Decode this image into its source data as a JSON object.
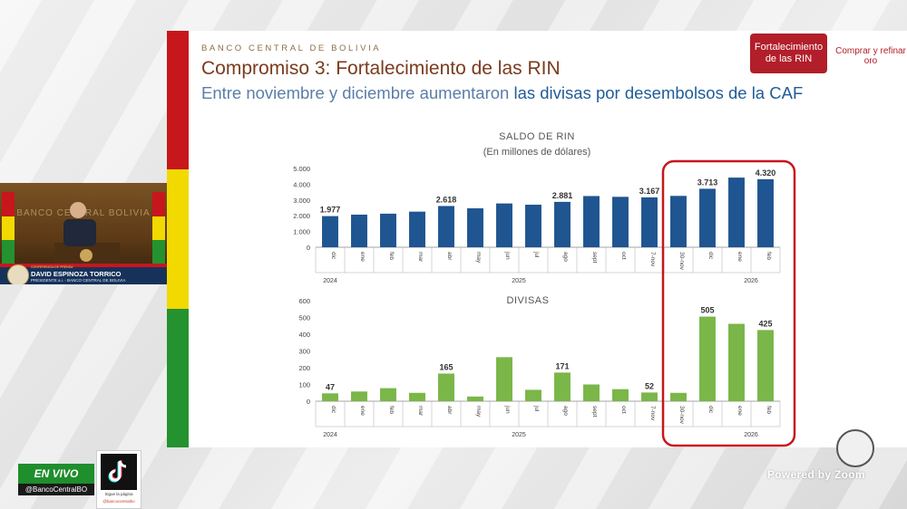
{
  "slide": {
    "bank_name": "BANCO CENTRAL DE BOLIVIA",
    "title": "Compromiso 3: Fortalecimiento de las RIN",
    "subtitle_part1": "Entre noviembre y diciembre aumentaron ",
    "subtitle_part2": "las divisas por desembolsos de la CAF",
    "button_primary": "Fortalecimiento de las RIN",
    "button_secondary": "Comprar y refinar oro",
    "colors": {
      "rin_bar": "#1f5590",
      "divisas_bar": "#7ab648",
      "highlight": "#c8161d",
      "flag_red": "#c8161d",
      "flag_yellow": "#f2d900",
      "flag_green": "#24922f"
    }
  },
  "chart_data": [
    {
      "type": "bar",
      "title": "SALDO DE RIN",
      "subtitle": "(En millones de dólares)",
      "categories": [
        "dic",
        "ene",
        "feb",
        "mar",
        "abr",
        "may",
        "jun",
        "jul",
        "ago",
        "sept",
        "oct",
        "7-nov",
        "30-nov",
        "dic",
        "ene",
        "feb"
      ],
      "values": [
        1977,
        2070,
        2130,
        2260,
        2618,
        2470,
        2780,
        2700,
        2881,
        3250,
        3200,
        3167,
        3260,
        3713,
        4420,
        4320
      ],
      "data_labels": [
        "1.977",
        "",
        "",
        "",
        "2.618",
        "",
        "",
        "",
        "2.881",
        "",
        "",
        "3.167",
        "",
        "3.713",
        "",
        "4.320"
      ],
      "years": [
        {
          "label": "2024",
          "from": 0,
          "to": 0
        },
        {
          "label": "2025",
          "from": 1,
          "to": 12
        },
        {
          "label": "2026",
          "from": 14,
          "to": 15
        }
      ],
      "yticks": [
        "0",
        "1.000",
        "2.000",
        "3.000",
        "4.000",
        "5.000"
      ],
      "ylim": [
        0,
        5000
      ]
    },
    {
      "type": "bar",
      "title": "DIVISAS",
      "categories": [
        "dic",
        "ene",
        "feb",
        "mar",
        "abr",
        "may",
        "jun",
        "jul",
        "ago",
        "sept",
        "oct",
        "7-nov",
        "30-nov",
        "dic",
        "ene",
        "feb"
      ],
      "values": [
        47,
        58,
        78,
        50,
        165,
        28,
        263,
        68,
        171,
        100,
        72,
        52,
        50,
        505,
        462,
        425
      ],
      "data_labels": [
        "47",
        "",
        "",
        "",
        "165",
        "",
        "",
        "",
        "171",
        "",
        "",
        "52",
        "",
        "505",
        "",
        "425"
      ],
      "years": [
        {
          "label": "2024",
          "from": 0,
          "to": 0
        },
        {
          "label": "2025",
          "from": 1,
          "to": 12
        },
        {
          "label": "2026",
          "from": 14,
          "to": 15
        }
      ],
      "yticks": [
        "0",
        "100",
        "200",
        "300",
        "400",
        "500",
        "600"
      ],
      "ylim": [
        0,
        600
      ]
    }
  ],
  "video": {
    "wall_text": "BANCO CENTRAL BOLIVIA",
    "speaker_name": "DAVID ESPINOZA TORRICO",
    "speaker_role": "PRESIDENTE a.i. - BANCO CENTRAL DE BOLIVIA",
    "ticker": "CONFERENCIA DE PRENSA"
  },
  "overlay": {
    "live_label": "EN VIVO",
    "handle": "@BancoCentralBO",
    "tiktok_caption": "Sigue la página",
    "tiktok_handle": "@bancocentralbo",
    "powered_by": "Powered by Zoom"
  }
}
